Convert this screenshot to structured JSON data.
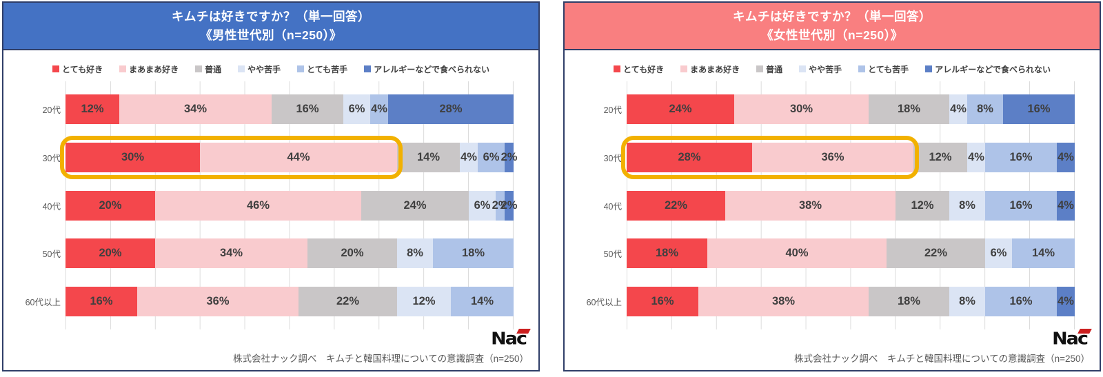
{
  "panels": [
    {
      "title_line1": "キムチは好きですか？（単一回答）",
      "title_line2": "《男性世代別（n=250）》",
      "header_color": "#4472C4"
    },
    {
      "title_line1": "キムチは好きですか？（単一回答）",
      "title_line2": "《女性世代別（n=250）》",
      "header_color": "#F97F80"
    }
  ],
  "legend": {
    "items": [
      {
        "label": "とても好き",
        "color": "#F4474C"
      },
      {
        "label": "まあまあ好き",
        "color": "#F9CBCE"
      },
      {
        "label": "普通",
        "color": "#C9C6C7"
      },
      {
        "label": "やや苦手",
        "color": "#DBE4F4"
      },
      {
        "label": "とても苦手",
        "color": "#AEC3E8"
      },
      {
        "label": "アレルギーなどで食べられない",
        "color": "#5C7FC6"
      }
    ]
  },
  "footer": {
    "logo_text": "Nac",
    "source_text": "株式会社ナック調べ　キムチと韓国料理についての意識調査（n=250）"
  },
  "style": {
    "highlight_color": "#F2B100",
    "grid_color": "#DCDCDC",
    "panel_border_color": "#2F3E68"
  },
  "chart_data": [
    {
      "type": "bar",
      "orientation": "horizontal-stacked",
      "title": "キムチは好きですか？（単一回答）《男性世代別（n=250）》",
      "unit": "%",
      "xlim": [
        0,
        100
      ],
      "grid": true,
      "categories": [
        "20代",
        "30代",
        "40代",
        "50代",
        "60代以上"
      ],
      "series": [
        {
          "name": "とても好き",
          "values": [
            12,
            30,
            20,
            20,
            16
          ]
        },
        {
          "name": "まあまあ好き",
          "values": [
            34,
            44,
            46,
            34,
            36
          ]
        },
        {
          "name": "普通",
          "values": [
            16,
            14,
            24,
            20,
            22
          ]
        },
        {
          "name": "やや苦手",
          "values": [
            6,
            4,
            6,
            8,
            12
          ]
        },
        {
          "name": "とても苦手",
          "values": [
            4,
            6,
            2,
            18,
            14
          ]
        },
        {
          "name": "アレルギーなどで食べられない",
          "values": [
            28,
            2,
            2,
            0,
            0
          ]
        }
      ],
      "highlight": {
        "category": "30代",
        "segment_count": 2
      }
    },
    {
      "type": "bar",
      "orientation": "horizontal-stacked",
      "title": "キムチは好きですか？（単一回答）《女性世代別（n=250）》",
      "unit": "%",
      "xlim": [
        0,
        100
      ],
      "grid": true,
      "categories": [
        "20代",
        "30代",
        "40代",
        "50代",
        "60代以上"
      ],
      "series": [
        {
          "name": "とても好き",
          "values": [
            24,
            28,
            22,
            18,
            16
          ]
        },
        {
          "name": "まあまあ好き",
          "values": [
            30,
            36,
            38,
            40,
            38
          ]
        },
        {
          "name": "普通",
          "values": [
            18,
            12,
            12,
            22,
            18
          ]
        },
        {
          "name": "やや苦手",
          "values": [
            4,
            4,
            8,
            6,
            8
          ]
        },
        {
          "name": "とても苦手",
          "values": [
            8,
            16,
            16,
            14,
            16
          ]
        },
        {
          "name": "アレルギーなどで食べられない",
          "values": [
            16,
            4,
            4,
            0,
            4
          ]
        }
      ],
      "highlight": {
        "category": "30代",
        "segment_count": 2
      }
    }
  ]
}
